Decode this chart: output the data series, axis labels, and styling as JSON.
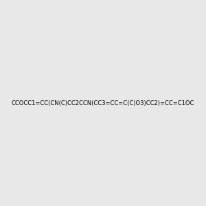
{
  "smiles": "CCOCC1=CC(CN(C)CC2CCN(CC3=CC=C(C)O3)CC2)=CC=C1OC",
  "image_size": 300,
  "background_color": "#e8e8e8",
  "bond_color": "#1a1a1a",
  "atom_colors": {
    "N": "#0000ff",
    "O": "#ff0000",
    "C": "#1a1a1a"
  }
}
